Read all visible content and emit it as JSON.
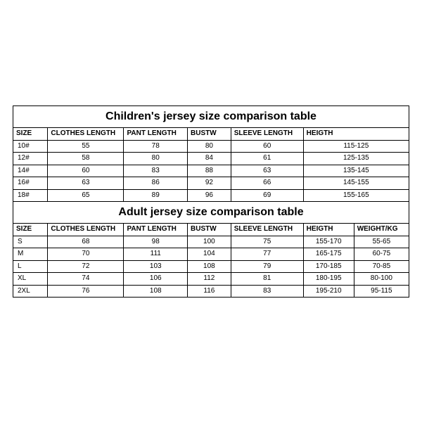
{
  "children": {
    "title": "Children's jersey size comparison table",
    "columns": [
      "SIZE",
      "CLOTHES LENGTH",
      "PANT LENGTH",
      "BUSTW",
      "SLEEVE LENGTH",
      "HEIGTH"
    ],
    "rows": [
      {
        "size": "10#",
        "clothes_length": "55",
        "pant_length": "78",
        "bustw": "80",
        "sleeve_length": "60",
        "height": "115-125"
      },
      {
        "size": "12#",
        "clothes_length": "58",
        "pant_length": "80",
        "bustw": "84",
        "sleeve_length": "61",
        "height": "125-135"
      },
      {
        "size": "14#",
        "clothes_length": "60",
        "pant_length": "83",
        "bustw": "88",
        "sleeve_length": "63",
        "height": "135-145"
      },
      {
        "size": "16#",
        "clothes_length": "63",
        "pant_length": "86",
        "bustw": "92",
        "sleeve_length": "66",
        "height": "145-155"
      },
      {
        "size": "18#",
        "clothes_length": "65",
        "pant_length": "89",
        "bustw": "96",
        "sleeve_length": "69",
        "height": "155-165"
      }
    ]
  },
  "adult": {
    "title": "Adult jersey size comparison table",
    "columns": [
      "SIZE",
      "CLOTHES LENGTH",
      "PANT LENGTH",
      "BUSTW",
      "SLEEVE LENGTH",
      "HEIGTH",
      "WEIGHT/KG"
    ],
    "rows": [
      {
        "size": "S",
        "clothes_length": "68",
        "pant_length": "98",
        "bustw": "100",
        "sleeve_length": "75",
        "height": "155-170",
        "weight": "55-65"
      },
      {
        "size": "M",
        "clothes_length": "70",
        "pant_length": "111",
        "bustw": "104",
        "sleeve_length": "77",
        "height": "165-175",
        "weight": "60-75"
      },
      {
        "size": "L",
        "clothes_length": "72",
        "pant_length": "103",
        "bustw": "108",
        "sleeve_length": "79",
        "height": "170-185",
        "weight": "70-85"
      },
      {
        "size": "XL",
        "clothes_length": "74",
        "pant_length": "106",
        "bustw": "112",
        "sleeve_length": "81",
        "height": "180-195",
        "weight": "80-100"
      },
      {
        "size": "2XL",
        "clothes_length": "76",
        "pant_length": "108",
        "bustw": "116",
        "sleeve_length": "83",
        "height": "195-210",
        "weight": "95-115"
      }
    ]
  },
  "colors": {
    "border": "#000000",
    "background": "#ffffff",
    "text": "#000000"
  }
}
